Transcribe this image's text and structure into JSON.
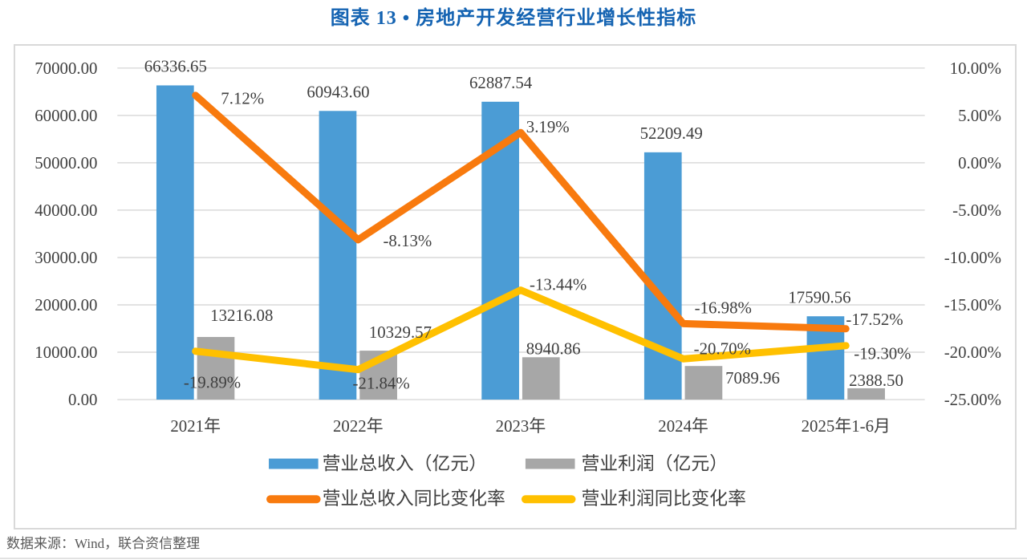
{
  "title": "图表 13 • 房地产开发经营行业增长性指标",
  "footer": {
    "source": "数据来源：Wind，联合资信整理"
  },
  "colors": {
    "title_text": "#1463b2",
    "axis_text": "#404040",
    "data_label_text": "#3f3f3f",
    "grid_line": "#d9d9d9",
    "frame_border": "#d9d9d9",
    "source_text": "#595959",
    "revenue_bar": "#4b9cd5",
    "profit_bar": "#a7a7a7",
    "revenue_growth_line": "#f87a0e",
    "profit_growth_line": "#ffc000"
  },
  "chart_data": {
    "type": "combo",
    "title": "图表 13 • 房地产开发经营行业增长性指标",
    "grid": true,
    "legend_position": "bottom",
    "categories": [
      "2021年",
      "2022年",
      "2023年",
      "2024年",
      "2025年1-6月"
    ],
    "left_axis": {
      "min": 0,
      "max": 70000,
      "step": 10000,
      "ticks": [
        "70000.00",
        "60000.00",
        "50000.00",
        "40000.00",
        "30000.00",
        "20000.00",
        "10000.00",
        "0.00"
      ]
    },
    "right_axis": {
      "min": -25,
      "max": 10,
      "step": 5,
      "ticks": [
        "10.00%",
        "5.00%",
        "0.00%",
        "-5.00%",
        "-10.00%",
        "-15.00%",
        "-20.00%",
        "-25.00%"
      ]
    },
    "series": [
      {
        "key": "revenue-bar",
        "name": "营业总收入（亿元）",
        "type": "bar",
        "axis": "left",
        "color": "#4b9cd5",
        "values": [
          66336.65,
          60943.6,
          62887.54,
          52209.49,
          17590.56
        ],
        "labels": [
          "66336.65",
          "60943.60",
          "62887.54",
          "52209.49",
          "17590.56"
        ],
        "label_offsets": [
          [
            0,
            0
          ],
          [
            0,
            0
          ],
          [
            0,
            0
          ],
          [
            10,
            0
          ],
          [
            -8,
            0
          ]
        ]
      },
      {
        "key": "profit-bar",
        "name": "营业利润（亿元）",
        "type": "bar",
        "axis": "left",
        "color": "#a7a7a7",
        "values": [
          13216.08,
          10329.57,
          8940.86,
          7089.96,
          2388.5
        ],
        "labels": [
          "13216.08",
          "10329.57",
          "8940.86",
          "7089.96",
          "2388.50"
        ],
        "label_offsets": [
          [
            33,
            -3
          ],
          [
            28,
            1
          ],
          [
            16,
            13
          ],
          [
            62,
            39
          ],
          [
            13,
            14
          ]
        ]
      },
      {
        "key": "revenue-growth-line",
        "name": "营业总收入同比变化率",
        "type": "line",
        "axis": "right",
        "color": "#f87a0e",
        "values": [
          7.12,
          -8.13,
          3.19,
          -16.98,
          -17.52
        ],
        "labels": [
          "7.12%",
          "-8.13%",
          "3.19%",
          "-16.98%",
          "-17.52%"
        ],
        "label_offsets": [
          [
            59,
            4
          ],
          [
            62,
            1
          ],
          [
            34,
            -7
          ],
          [
            50,
            -20
          ],
          [
            36,
            -12
          ]
        ]
      },
      {
        "key": "profit-growth-line",
        "name": "营业利润同比变化率",
        "type": "line",
        "axis": "right",
        "color": "#ffc000",
        "values": [
          -19.89,
          -21.84,
          -13.44,
          -20.7,
          -19.3
        ],
        "labels": [
          "-19.89%",
          "-21.84%",
          "-13.44%",
          "-20.70%",
          "-19.30%"
        ],
        "label_offsets": [
          [
            21,
            39
          ],
          [
            29,
            17
          ],
          [
            47,
            -7
          ],
          [
            49,
            -13
          ],
          [
            46,
            10
          ]
        ]
      }
    ]
  }
}
